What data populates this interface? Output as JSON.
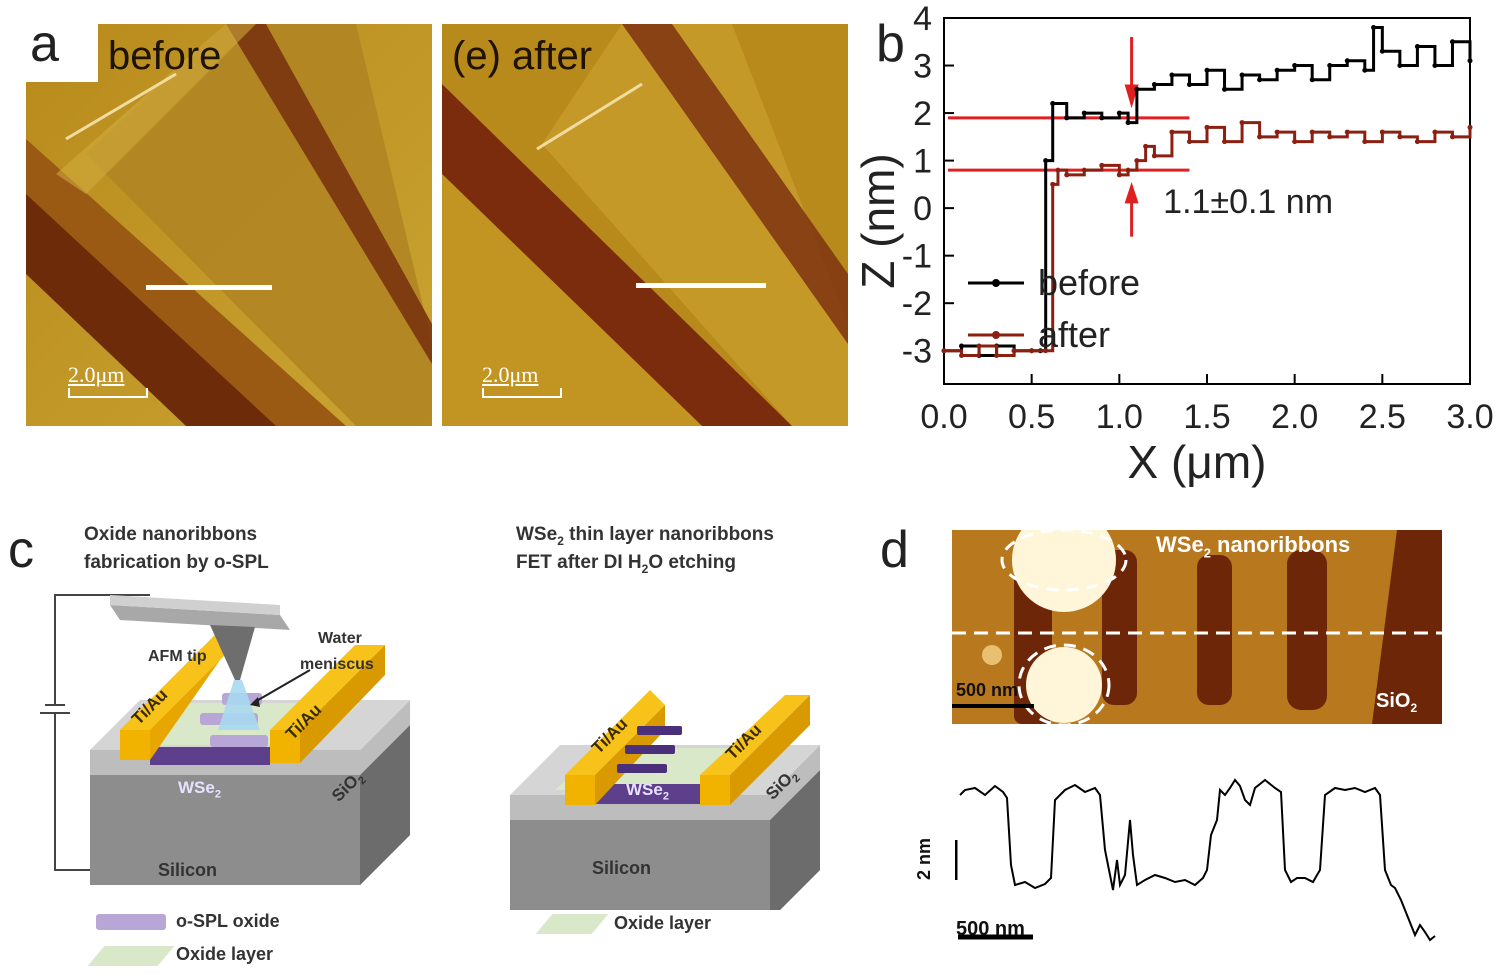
{
  "panel_labels": {
    "a": "a",
    "b": "b",
    "c": "c",
    "d": "d"
  },
  "panel_a": {
    "before_title": "before",
    "after_title": "(e) after",
    "scale_bar": "2.0μm"
  },
  "chart_data": {
    "type": "line",
    "xlabel": "X (μm)",
    "ylabel": "Z (nm)",
    "xlim": [
      0.0,
      3.0
    ],
    "ylim": [
      -3.7,
      4
    ],
    "xticks": [
      "0.0",
      "0.5",
      "1.0",
      "1.5",
      "2.0",
      "2.5",
      "3.0"
    ],
    "yticks": [
      "-3",
      "-2",
      "-1",
      "0",
      "1",
      "2",
      "3",
      "4"
    ],
    "annotation": "1.1±0.1 nm",
    "ref_lines": [
      1.9,
      0.8
    ],
    "series": [
      {
        "name": "before",
        "color": "#000000",
        "x": [
          0.0,
          0.1,
          0.2,
          0.3,
          0.4,
          0.5,
          0.55,
          0.58,
          0.62,
          0.7,
          0.8,
          0.9,
          1.0,
          1.05,
          1.1,
          1.2,
          1.3,
          1.4,
          1.5,
          1.6,
          1.7,
          1.8,
          1.9,
          2.0,
          2.1,
          2.2,
          2.3,
          2.4,
          2.45,
          2.5,
          2.6,
          2.7,
          2.8,
          2.9,
          3.0
        ],
        "y": [
          -3.0,
          -2.9,
          -3.1,
          -2.9,
          -3.0,
          -3.0,
          -3.0,
          1.0,
          2.2,
          1.9,
          2.0,
          1.9,
          2.0,
          1.8,
          2.5,
          2.6,
          2.8,
          2.6,
          2.9,
          2.5,
          2.8,
          2.7,
          2.9,
          3.0,
          2.7,
          3.0,
          3.1,
          2.9,
          3.8,
          3.3,
          3.0,
          3.4,
          3.0,
          3.5,
          3.1
        ]
      },
      {
        "name": "after",
        "color": "#8b2010",
        "x": [
          0.0,
          0.1,
          0.2,
          0.3,
          0.4,
          0.5,
          0.58,
          0.62,
          0.65,
          0.7,
          0.8,
          0.9,
          1.0,
          1.05,
          1.1,
          1.15,
          1.2,
          1.3,
          1.4,
          1.5,
          1.6,
          1.7,
          1.8,
          1.9,
          2.0,
          2.1,
          2.2,
          2.3,
          2.4,
          2.5,
          2.6,
          2.7,
          2.8,
          2.9,
          3.0
        ],
        "y": [
          -3.0,
          -3.1,
          -2.9,
          -3.1,
          -3.0,
          -3.0,
          -3.0,
          0.5,
          0.8,
          0.7,
          0.8,
          0.9,
          0.7,
          0.8,
          1.0,
          1.3,
          1.1,
          1.6,
          1.4,
          1.7,
          1.4,
          1.8,
          1.5,
          1.6,
          1.4,
          1.6,
          1.5,
          1.6,
          1.4,
          1.6,
          1.5,
          1.4,
          1.6,
          1.5,
          1.7
        ]
      }
    ]
  },
  "panel_c": {
    "left_title_1": "Oxide nanoribbons",
    "left_title_2": "fabrication  by o-SPL",
    "right_title_1_pre": "WSe",
    "right_title_1_sub": "2",
    "right_title_1_post": " thin layer nanoribbons",
    "right_title_2_pre": "FET  after DI H",
    "right_title_2_sub": "2",
    "right_title_2_post": "O etching",
    "afm_tip": "AFM tip",
    "water": "Water",
    "meniscus": "meniscus",
    "tiau": "Ti/Au",
    "wse2": "WSe",
    "wse2_sub": "2",
    "sio2": "SiO",
    "sio2_sub": "2",
    "silicon": "Silicon",
    "legend_ospl": "o-SPL oxide",
    "legend_oxide": "Oxide layer"
  },
  "panel_d": {
    "title_pre": "WSe",
    "title_sub": "2",
    "title_post": " nanoribbons",
    "scale_bar": "500 nm",
    "sio2": "SiO",
    "sio2_sub": "2",
    "profile_vscale": "2 nm",
    "profile_hscale": "500 nm"
  },
  "colors": {
    "afm_light": "#c9a22a",
    "afm_dark": "#7a2c0c",
    "tiau": "#f5b400",
    "wse2": "#6a4a9a",
    "ospl": "#b8a6d6",
    "oxide": "#d9e8c8",
    "silicon": "#8a8a8a",
    "sio2": "#c0c0c0",
    "red": "#e02020"
  }
}
